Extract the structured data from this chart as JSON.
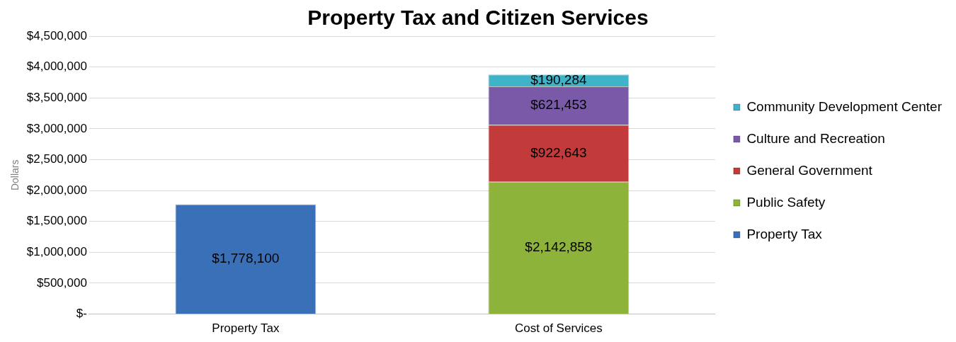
{
  "chart_data": {
    "type": "bar",
    "title": "Property Tax and Citizen Services",
    "ylabel": "Dollars",
    "categories": [
      "Property Tax",
      "Cost of Services"
    ],
    "stacked": true,
    "legend": "right",
    "grid": "y",
    "ylim": [
      0,
      4500000
    ],
    "yticks": [
      {
        "value": 0,
        "label": "$-"
      },
      {
        "value": 500000,
        "label": "$500,000"
      },
      {
        "value": 1000000,
        "label": "$1,000,000"
      },
      {
        "value": 1500000,
        "label": "$1,500,000"
      },
      {
        "value": 2000000,
        "label": "$2,000,000"
      },
      {
        "value": 2500000,
        "label": "$2,500,000"
      },
      {
        "value": 3000000,
        "label": "$3,000,000"
      },
      {
        "value": 3500000,
        "label": "$3,500,000"
      },
      {
        "value": 4000000,
        "label": "$4,000,000"
      },
      {
        "value": 4500000,
        "label": "$4,500,000"
      }
    ],
    "series": [
      {
        "name": "Property Tax",
        "color": "#3a70b8",
        "values": [
          1778100,
          null
        ],
        "value_labels": [
          "$1,778,100",
          null
        ]
      },
      {
        "name": "Public Safety",
        "color": "#8db33a",
        "values": [
          null,
          2142858
        ],
        "value_labels": [
          null,
          "$2,142,858"
        ]
      },
      {
        "name": "General Government",
        "color": "#c23a3a",
        "values": [
          null,
          922643
        ],
        "value_labels": [
          null,
          "$922,643"
        ]
      },
      {
        "name": "Culture and Recreation",
        "color": "#7a5aa8",
        "values": [
          null,
          621453
        ],
        "value_labels": [
          null,
          "$621,453"
        ]
      },
      {
        "name": "Community Development Center",
        "color": "#3fb3c8",
        "values": [
          null,
          190284
        ],
        "value_labels": [
          null,
          "$190,284"
        ]
      }
    ]
  }
}
